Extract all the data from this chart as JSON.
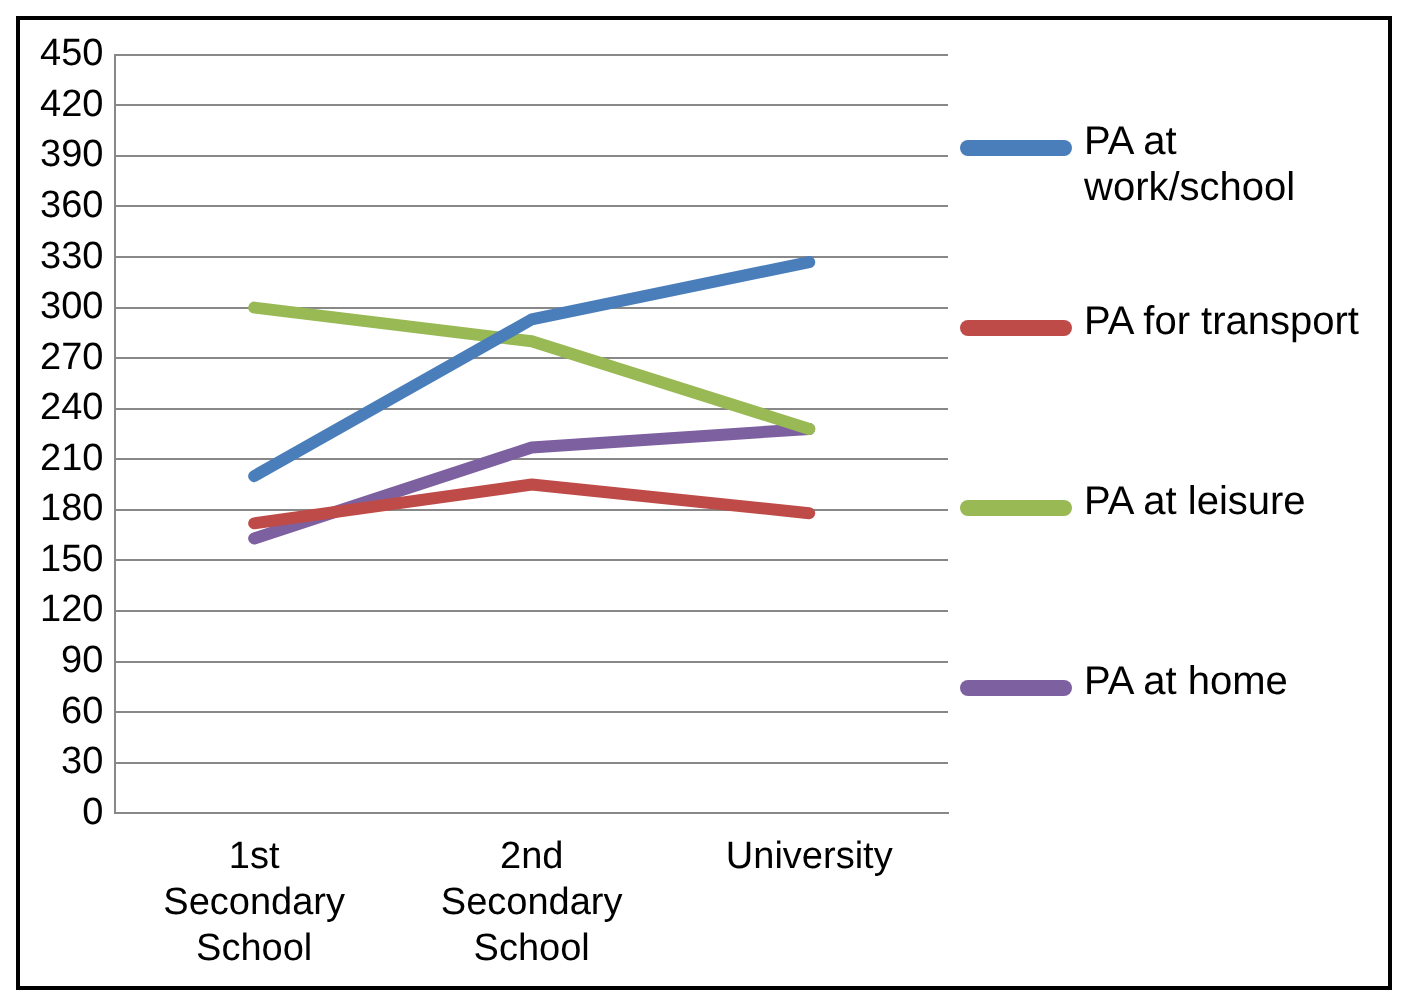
{
  "chart_data": {
    "type": "line",
    "categories": [
      "1st Secondary School",
      "2nd Secondary School",
      "University"
    ],
    "series": [
      {
        "name": "PA at work/school",
        "color": "#4a7ebb",
        "values": [
          200,
          293,
          327
        ]
      },
      {
        "name": "PA for transport",
        "color": "#be4b48",
        "values": [
          172,
          195,
          178
        ]
      },
      {
        "name": "PA at leisure",
        "color": "#98b954",
        "values": [
          300,
          280,
          228
        ]
      },
      {
        "name": "PA at home",
        "color": "#7d60a0",
        "values": [
          163,
          217,
          228
        ]
      }
    ],
    "ylim": [
      0,
      450
    ],
    "yticks": [
      0,
      30,
      60,
      90,
      120,
      150,
      180,
      210,
      240,
      270,
      300,
      330,
      360,
      390,
      420,
      450
    ],
    "grid": "y",
    "legend": "right",
    "marker": "none",
    "line_style": "solid"
  }
}
